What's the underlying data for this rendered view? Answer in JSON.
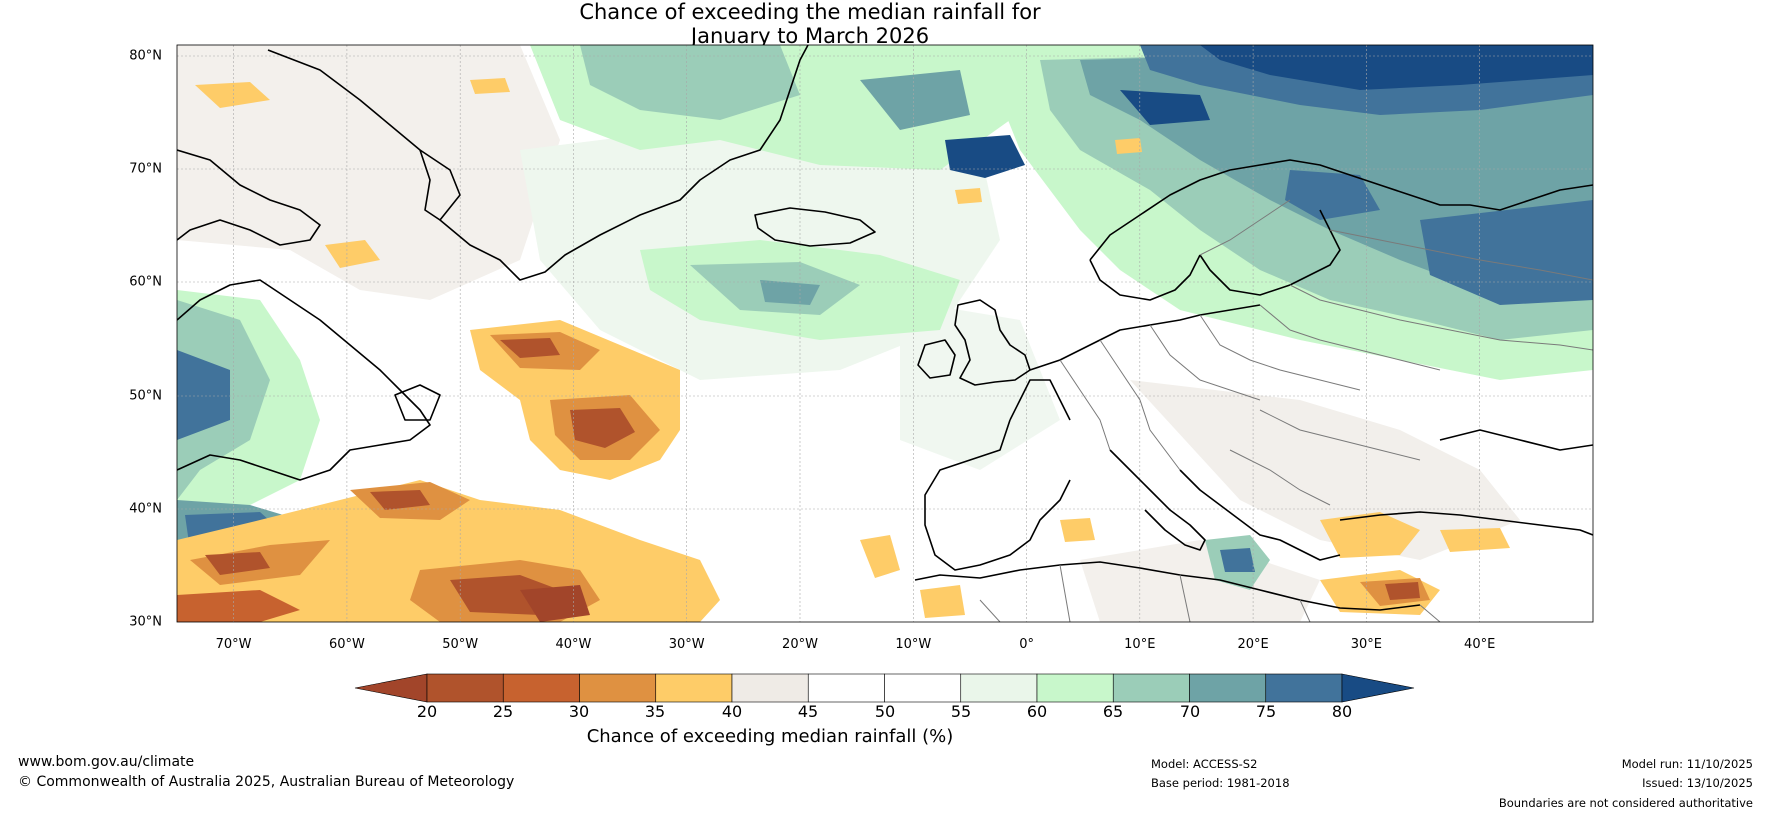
{
  "title": {
    "line1": "Chance of exceeding the median rainfall for",
    "line2": "January to March 2026"
  },
  "map": {
    "lat_labels": [
      "80°N",
      "70°N",
      "60°N",
      "50°N",
      "40°N",
      "30°N"
    ],
    "lon_labels": [
      "70°W",
      "60°W",
      "50°W",
      "40°W",
      "30°W",
      "20°W",
      "10°W",
      "0°",
      "10°E",
      "20°E",
      "30°E",
      "40°E"
    ],
    "extent": {
      "lon_min": -75,
      "lon_max": 50,
      "lat_min": 30,
      "lat_max": 81
    }
  },
  "colorbar": {
    "ticks": [
      "20",
      "25",
      "30",
      "35",
      "40",
      "45",
      "50",
      "55",
      "60",
      "65",
      "70",
      "75",
      "80"
    ],
    "colors": [
      "#a2452a",
      "#b0532c",
      "#c7622f",
      "#df9141",
      "#fecc68",
      "#efebe6",
      "#ffffff",
      "#ffffff",
      "#eaf6ea",
      "#c8f7cb",
      "#9bcdb8",
      "#6ea3a6",
      "#41739b",
      "#184b84"
    ],
    "title": "Chance of exceeding median rainfall (%)"
  },
  "footer": {
    "website": "www.bom.gov.au/climate",
    "copyright": "© Commonwealth of Australia 2025, Australian Bureau of Meteorology",
    "model": "Model: ACCESS-S2",
    "base_period": "Base period: 1981-2018",
    "model_run": "Model run: 11/10/2025",
    "issued": "Issued: 13/10/2025",
    "disclaimer": "Boundaries are not considered authoritative"
  }
}
